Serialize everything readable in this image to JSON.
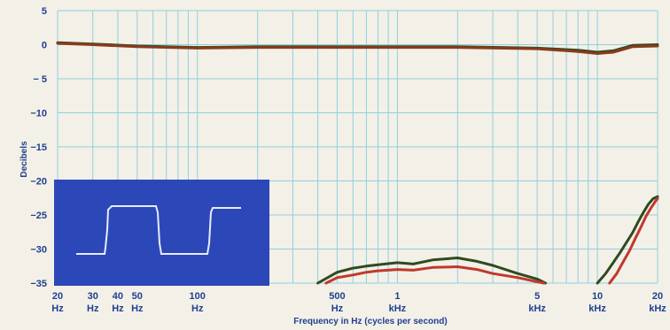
{
  "chart_data": {
    "type": "line",
    "xlabel": "Frequency in Hz (cycles per second)",
    "ylabel": "Decibels",
    "x_scale": "log",
    "xlim": [
      20,
      20000
    ],
    "ylim": [
      -35,
      5
    ],
    "grid": true,
    "y_ticks": [
      {
        "value": 5,
        "label": "5"
      },
      {
        "value": 0,
        "label": "0"
      },
      {
        "value": -5,
        "label": "− 5"
      },
      {
        "value": -10,
        "label": "−10"
      },
      {
        "value": -15,
        "label": "−15"
      },
      {
        "value": -20,
        "label": "−20"
      },
      {
        "value": -25,
        "label": "−25"
      },
      {
        "value": -30,
        "label": "−30"
      },
      {
        "value": -35,
        "label": "−35"
      }
    ],
    "x_ticks": [
      {
        "value": 20,
        "num": "20",
        "unit": "Hz"
      },
      {
        "value": 30,
        "num": "30",
        "unit": "Hz"
      },
      {
        "value": 40,
        "num": "40",
        "unit": "Hz"
      },
      {
        "value": 50,
        "num": "50",
        "unit": "Hz"
      },
      {
        "value": 100,
        "num": "100",
        "unit": "Hz"
      },
      {
        "value": 500,
        "num": "500",
        "unit": "Hz"
      },
      {
        "value": 1000,
        "num": "1",
        "unit": "kHz"
      },
      {
        "value": 5000,
        "num": "5",
        "unit": "kHz"
      },
      {
        "value": 10000,
        "num": "10",
        "unit": "kHz"
      },
      {
        "value": 20000,
        "num": "20",
        "unit": "kHz"
      }
    ],
    "grid_x": [
      20,
      30,
      40,
      50,
      60,
      70,
      80,
      90,
      100,
      200,
      300,
      400,
      500,
      600,
      700,
      800,
      900,
      1000,
      2000,
      3000,
      4000,
      5000,
      6000,
      7000,
      8000,
      9000,
      10000,
      20000
    ],
    "series": [
      {
        "color": "#2f4a1f",
        "x": [
          20,
          30,
          50,
          100,
          200,
          500,
          1000,
          2000,
          5000,
          8000,
          10000,
          12000,
          15000,
          20000
        ],
        "y": [
          0.3,
          0.1,
          -0.2,
          -0.4,
          -0.3,
          -0.3,
          -0.3,
          -0.3,
          -0.5,
          -0.8,
          -1.1,
          -0.9,
          -0.1,
          0.0
        ]
      },
      {
        "color": "#8a3a1a",
        "x": [
          20,
          30,
          50,
          100,
          200,
          500,
          1000,
          2000,
          5000,
          8000,
          10000,
          12000,
          15000,
          20000
        ],
        "y": [
          0.2,
          0.0,
          -0.3,
          -0.5,
          -0.4,
          -0.4,
          -0.4,
          -0.4,
          -0.6,
          -1.0,
          -1.3,
          -1.1,
          -0.3,
          -0.2
        ]
      },
      {
        "color": "#2f4a1f",
        "x": [
          400,
          500,
          600,
          700,
          800,
          1000,
          1200,
          1500,
          2000,
          2500,
          3000,
          4000,
          5000,
          5500
        ],
        "y": [
          -35,
          -33.4,
          -32.8,
          -32.5,
          -32.3,
          -32.0,
          -32.2,
          -31.6,
          -31.3,
          -31.8,
          -32.4,
          -33.6,
          -34.4,
          -35
        ]
      },
      {
        "color": "#c0392b",
        "x": [
          440,
          500,
          600,
          700,
          800,
          1000,
          1200,
          1500,
          2000,
          2500,
          3000,
          4000,
          5000,
          5400
        ],
        "y": [
          -35,
          -34.2,
          -33.8,
          -33.4,
          -33.2,
          -33.0,
          -33.1,
          -32.7,
          -32.6,
          -33.0,
          -33.6,
          -34.2,
          -34.8,
          -35
        ]
      },
      {
        "color": "#2f4a1f",
        "x": [
          10000,
          11000,
          12000,
          13000,
          14000,
          15000,
          16000,
          17000,
          18000,
          19000,
          20000
        ],
        "y": [
          -35,
          -33.6,
          -32.0,
          -30.5,
          -29.0,
          -27.6,
          -26.0,
          -24.6,
          -23.4,
          -22.6,
          -22.3
        ]
      },
      {
        "color": "#c0392b",
        "x": [
          11500,
          12500,
          13500,
          14500,
          15500,
          16500,
          17500,
          18500,
          19500,
          20000
        ],
        "y": [
          -35,
          -33.6,
          -31.8,
          -30.2,
          -28.4,
          -26.8,
          -25.2,
          -24.0,
          -23.0,
          -22.6
        ]
      }
    ]
  },
  "inset": {
    "waveform_color": "#e6ecff",
    "background_color": "#2c48b8"
  }
}
